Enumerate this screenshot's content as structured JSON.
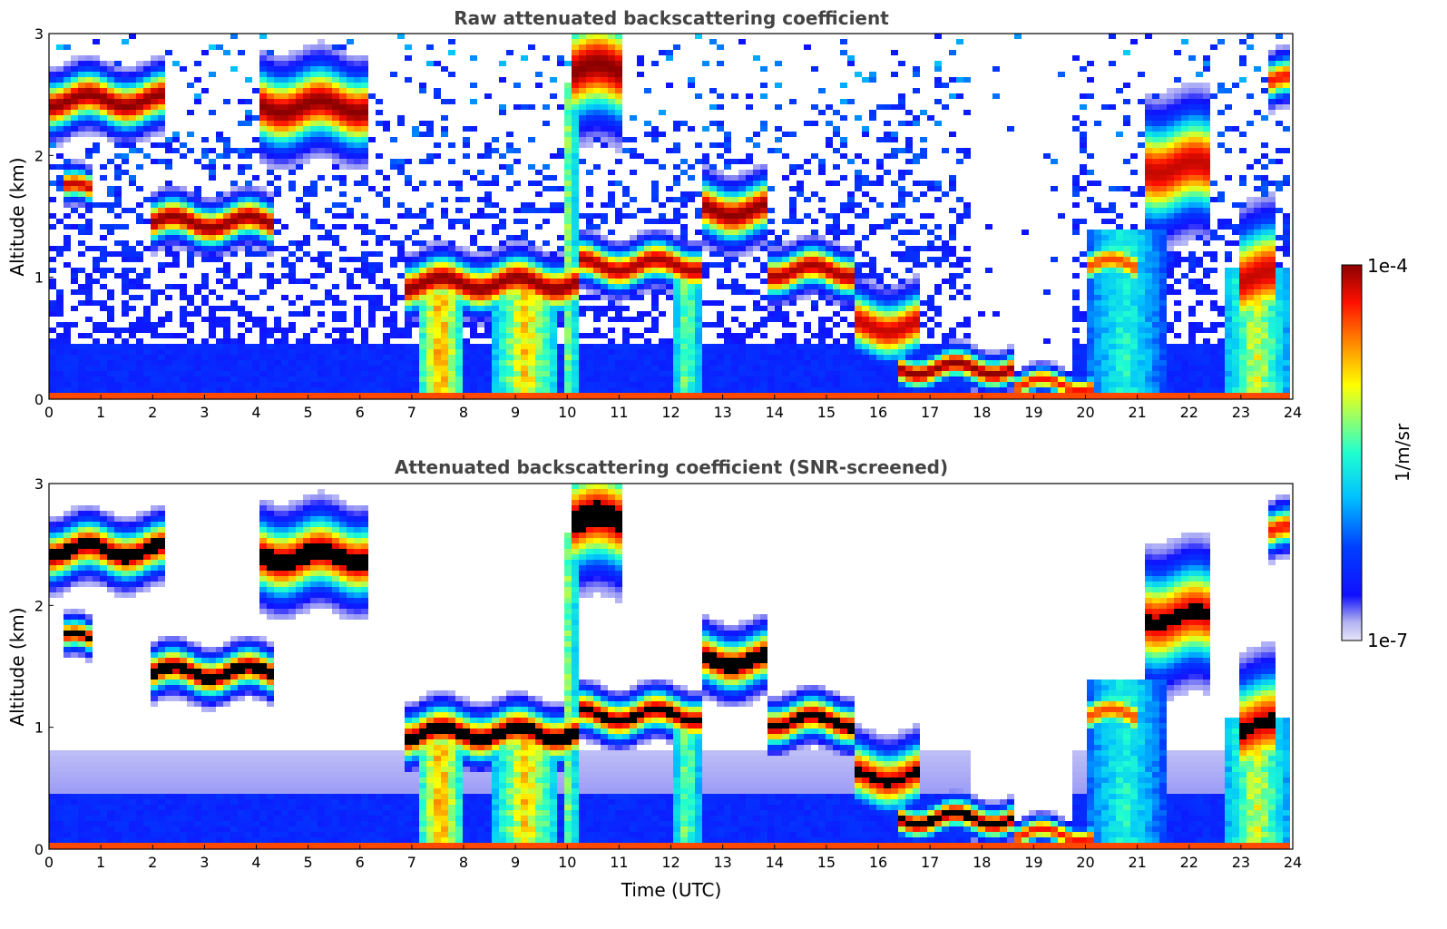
{
  "chart_data": [
    {
      "type": "heatmap",
      "title": "Raw attenuated backscattering coefficient",
      "xlabel": "",
      "ylabel": "Altitude (km)",
      "xlim": [
        0,
        24
      ],
      "ylim": [
        0,
        3
      ],
      "xticks": [
        "0",
        "1",
        "2",
        "3",
        "4",
        "5",
        "6",
        "7",
        "8",
        "9",
        "10",
        "11",
        "12",
        "13",
        "14",
        "15",
        "16",
        "17",
        "18",
        "19",
        "20",
        "21",
        "22",
        "23",
        "24"
      ],
      "yticks": [
        "0",
        "1",
        "2",
        "3"
      ],
      "grid": false,
      "value_range": [
        1e-07,
        0.0001
      ],
      "features": {
        "background_noise": true,
        "clear_sky_gap": [
          18.0,
          19.8
        ],
        "screened": false
      }
    },
    {
      "type": "heatmap",
      "title": "Attenuated backscattering coefficient (SNR-screened)",
      "xlabel": "Time (UTC)",
      "ylabel": "Altitude (km)",
      "xlim": [
        0,
        24
      ],
      "ylim": [
        0,
        3
      ],
      "xticks": [
        "0",
        "1",
        "2",
        "3",
        "4",
        "5",
        "6",
        "7",
        "8",
        "9",
        "10",
        "11",
        "12",
        "13",
        "14",
        "15",
        "16",
        "17",
        "18",
        "19",
        "20",
        "21",
        "22",
        "23",
        "24"
      ],
      "yticks": [
        "0",
        "1",
        "2",
        "3"
      ],
      "grid": false,
      "value_range": [
        1e-07,
        0.0001
      ],
      "features": {
        "background_noise": false,
        "screened": true,
        "saturated_color": "#000000"
      }
    }
  ],
  "colorbar": {
    "max_label": "1e-4",
    "min_label": "1e-7",
    "unit_label": "1/m/sr",
    "colormap": "jet",
    "colors": [
      "#e6e6fa",
      "#0000ff",
      "#00bfff",
      "#00ffbf",
      "#ffff00",
      "#ff8000",
      "#ff0000",
      "#8b0000"
    ]
  }
}
